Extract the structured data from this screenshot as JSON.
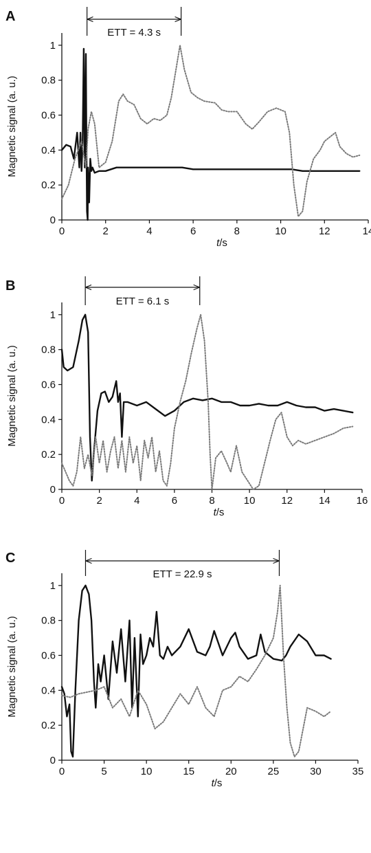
{
  "chart_data": [
    {
      "type": "line",
      "panel": "A",
      "xlabel_italic": "t",
      "xlabel_rest": "/s",
      "ylabel": "Magnetic signal (a. u.)",
      "xlim": [
        0,
        14
      ],
      "ylim": [
        0,
        1
      ],
      "xticks": [
        "0",
        "2",
        "4",
        "6",
        "8",
        "10",
        "12",
        "14"
      ],
      "yticks": [
        "0",
        "0.2",
        "0.4",
        "0.6",
        "0.8",
        "1"
      ],
      "ett_label": "ETT = 4.3 s",
      "ett_range": [
        1.15,
        5.45
      ],
      "series": [
        {
          "style": "solid",
          "x": [
            0,
            0.2,
            0.4,
            0.55,
            0.7,
            0.8,
            0.85,
            0.9,
            0.95,
            1.0,
            1.05,
            1.1,
            1.12,
            1.15,
            1.18,
            1.2,
            1.25,
            1.3,
            1.35,
            1.4,
            1.5,
            1.7,
            2.0,
            2.5,
            3.0,
            4.0,
            5.0,
            5.5,
            6.0,
            7.0,
            8.0,
            9.0,
            10.0,
            10.5,
            11.0,
            12.0,
            13.0,
            13.6
          ],
          "y": [
            0.4,
            0.43,
            0.42,
            0.35,
            0.5,
            0.3,
            0.5,
            0.28,
            0.45,
            0.98,
            0.3,
            0.95,
            0.5,
            0.05,
            0.0,
            0.3,
            0.1,
            0.35,
            0.28,
            0.3,
            0.27,
            0.28,
            0.28,
            0.3,
            0.3,
            0.3,
            0.3,
            0.3,
            0.29,
            0.29,
            0.29,
            0.29,
            0.29,
            0.29,
            0.28,
            0.28,
            0.28,
            0.28
          ]
        },
        {
          "style": "dotted",
          "x": [
            0,
            0.3,
            0.6,
            0.9,
            1.1,
            1.2,
            1.35,
            1.5,
            1.7,
            2.0,
            2.3,
            2.6,
            2.8,
            3.0,
            3.3,
            3.6,
            3.9,
            4.2,
            4.5,
            4.8,
            5.0,
            5.2,
            5.4,
            5.6,
            5.9,
            6.2,
            6.5,
            7.0,
            7.3,
            7.6,
            8.0,
            8.4,
            8.7,
            9.0,
            9.4,
            9.8,
            10.2,
            10.4,
            10.6,
            10.8,
            11.0,
            11.2,
            11.5,
            11.8,
            12.0,
            12.3,
            12.5,
            12.7,
            13.0,
            13.3,
            13.6
          ],
          "y": [
            0.12,
            0.2,
            0.35,
            0.45,
            0.3,
            0.52,
            0.62,
            0.55,
            0.3,
            0.33,
            0.45,
            0.68,
            0.72,
            0.68,
            0.66,
            0.58,
            0.55,
            0.58,
            0.57,
            0.6,
            0.7,
            0.85,
            1.0,
            0.86,
            0.73,
            0.7,
            0.68,
            0.67,
            0.63,
            0.62,
            0.62,
            0.55,
            0.52,
            0.56,
            0.62,
            0.64,
            0.62,
            0.5,
            0.2,
            0.02,
            0.05,
            0.22,
            0.35,
            0.4,
            0.45,
            0.48,
            0.5,
            0.42,
            0.38,
            0.36,
            0.37
          ]
        }
      ]
    },
    {
      "type": "line",
      "panel": "B",
      "xlabel_italic": "t",
      "xlabel_rest": "/s",
      "ylabel": "Magnetic signal (a. u.)",
      "xlim": [
        0,
        16
      ],
      "ylim": [
        0,
        1
      ],
      "xticks": [
        "0",
        "2",
        "4",
        "6",
        "8",
        "10",
        "12",
        "14",
        "16"
      ],
      "yticks": [
        "0",
        "0.2",
        "0.4",
        "0.6",
        "0.8",
        "1"
      ],
      "ett_label": "ETT = 6.1 s",
      "ett_range": [
        1.25,
        7.35
      ],
      "series": [
        {
          "style": "solid",
          "x": [
            0,
            0.1,
            0.3,
            0.6,
            0.9,
            1.1,
            1.25,
            1.4,
            1.5,
            1.6,
            1.7,
            1.9,
            2.1,
            2.3,
            2.5,
            2.7,
            2.9,
            3.0,
            3.1,
            3.2,
            3.3,
            3.5,
            4.0,
            4.5,
            5.0,
            5.5,
            6.0,
            6.5,
            7.0,
            7.5,
            8.0,
            8.5,
            9.0,
            9.5,
            10.0,
            10.5,
            11.0,
            11.5,
            12.0,
            12.5,
            13.0,
            13.5,
            14.0,
            14.5,
            15.0,
            15.5
          ],
          "y": [
            0.8,
            0.7,
            0.68,
            0.7,
            0.85,
            0.97,
            1.0,
            0.9,
            0.3,
            0.05,
            0.2,
            0.45,
            0.55,
            0.56,
            0.5,
            0.53,
            0.62,
            0.5,
            0.55,
            0.3,
            0.5,
            0.5,
            0.48,
            0.5,
            0.46,
            0.42,
            0.45,
            0.5,
            0.52,
            0.51,
            0.52,
            0.5,
            0.5,
            0.48,
            0.48,
            0.49,
            0.48,
            0.48,
            0.5,
            0.48,
            0.47,
            0.47,
            0.45,
            0.46,
            0.45,
            0.44
          ]
        },
        {
          "style": "dotted",
          "x": [
            0,
            0.2,
            0.4,
            0.6,
            0.8,
            1.0,
            1.2,
            1.4,
            1.6,
            1.8,
            2.0,
            2.2,
            2.4,
            2.6,
            2.8,
            3.0,
            3.2,
            3.4,
            3.6,
            3.8,
            4.0,
            4.2,
            4.4,
            4.6,
            4.8,
            5.0,
            5.2,
            5.4,
            5.6,
            5.8,
            6.0,
            6.3,
            6.6,
            6.9,
            7.2,
            7.4,
            7.6,
            7.8,
            7.9,
            8.0,
            8.2,
            8.5,
            8.8,
            9.0,
            9.3,
            9.6,
            9.9,
            10.2,
            10.5,
            10.8,
            11.1,
            11.4,
            11.7,
            12.0,
            12.3,
            12.6,
            13.0,
            13.5,
            14.0,
            14.5,
            15.0,
            15.5
          ],
          "y": [
            0.15,
            0.1,
            0.05,
            0.02,
            0.1,
            0.3,
            0.12,
            0.2,
            0.08,
            0.3,
            0.15,
            0.28,
            0.1,
            0.22,
            0.3,
            0.12,
            0.28,
            0.1,
            0.3,
            0.15,
            0.25,
            0.05,
            0.28,
            0.18,
            0.3,
            0.1,
            0.22,
            0.05,
            0.02,
            0.15,
            0.35,
            0.5,
            0.62,
            0.78,
            0.92,
            1.0,
            0.85,
            0.5,
            0.2,
            0.0,
            0.18,
            0.22,
            0.15,
            0.1,
            0.25,
            0.1,
            0.05,
            0.0,
            0.02,
            0.15,
            0.28,
            0.4,
            0.44,
            0.3,
            0.25,
            0.28,
            0.26,
            0.28,
            0.3,
            0.32,
            0.35,
            0.36
          ]
        }
      ]
    },
    {
      "type": "line",
      "panel": "C",
      "xlabel_italic": "t",
      "xlabel_rest": "/s",
      "ylabel": "Magnetic signal (a. u.)",
      "xlim": [
        0,
        35
      ],
      "ylim": [
        0,
        1
      ],
      "xticks": [
        "0",
        "5",
        "10",
        "15",
        "20",
        "25",
        "30",
        "35"
      ],
      "yticks": [
        "0",
        "0.2",
        "0.4",
        "0.6",
        "0.8",
        "1"
      ],
      "ett_label": "ETT = 22.9 s",
      "ett_range": [
        2.8,
        25.7
      ],
      "series": [
        {
          "style": "solid",
          "x": [
            0,
            0.3,
            0.6,
            0.9,
            1.1,
            1.3,
            1.6,
            2.0,
            2.4,
            2.8,
            3.2,
            3.5,
            3.8,
            4.0,
            4.3,
            4.6,
            5.0,
            5.5,
            6.0,
            6.5,
            7.0,
            7.5,
            8.0,
            8.3,
            8.6,
            9.0,
            9.3,
            9.6,
            10.0,
            10.4,
            10.8,
            11.2,
            11.6,
            12.0,
            12.5,
            13.0,
            14.0,
            15.0,
            16.0,
            17.0,
            17.5,
            18.0,
            19.0,
            20.0,
            20.5,
            21.0,
            22.0,
            23.0,
            23.5,
            24.0,
            25.0,
            26.0,
            26.5,
            27.0,
            28.0,
            29.0,
            30.0,
            31.0,
            31.8
          ],
          "y": [
            0.42,
            0.38,
            0.25,
            0.32,
            0.05,
            0.02,
            0.4,
            0.8,
            0.97,
            1.0,
            0.95,
            0.8,
            0.45,
            0.3,
            0.55,
            0.45,
            0.6,
            0.35,
            0.68,
            0.5,
            0.75,
            0.45,
            0.8,
            0.3,
            0.7,
            0.25,
            0.72,
            0.55,
            0.6,
            0.7,
            0.65,
            0.85,
            0.6,
            0.58,
            0.65,
            0.6,
            0.65,
            0.75,
            0.62,
            0.6,
            0.65,
            0.74,
            0.6,
            0.7,
            0.73,
            0.65,
            0.58,
            0.6,
            0.72,
            0.62,
            0.58,
            0.57,
            0.6,
            0.65,
            0.72,
            0.68,
            0.6,
            0.6,
            0.58
          ]
        },
        {
          "style": "dotted",
          "x": [
            0,
            1,
            2,
            3,
            4,
            5,
            6,
            7,
            8,
            9,
            10,
            11,
            12,
            13,
            14,
            15,
            16,
            17,
            18,
            19,
            20,
            21,
            22,
            23,
            24,
            25,
            25.5,
            25.8,
            26.2,
            26.6,
            27.0,
            27.5,
            28.0,
            29.0,
            30.0,
            31.0,
            31.8
          ],
          "y": [
            0.37,
            0.36,
            0.38,
            0.39,
            0.4,
            0.42,
            0.3,
            0.35,
            0.25,
            0.4,
            0.32,
            0.18,
            0.22,
            0.3,
            0.38,
            0.32,
            0.42,
            0.3,
            0.25,
            0.4,
            0.42,
            0.48,
            0.45,
            0.52,
            0.6,
            0.7,
            0.85,
            1.0,
            0.6,
            0.3,
            0.1,
            0.02,
            0.05,
            0.3,
            0.28,
            0.25,
            0.28
          ]
        }
      ]
    }
  ]
}
